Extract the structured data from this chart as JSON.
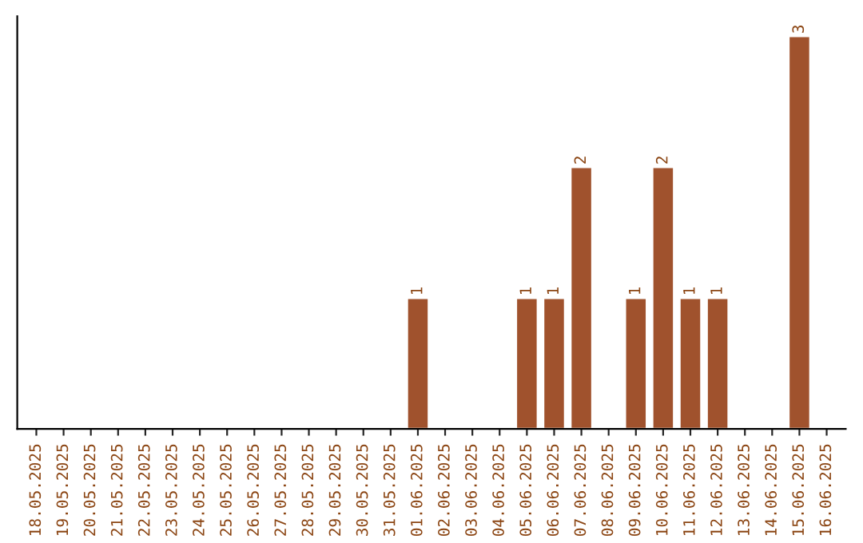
{
  "chart_data": {
    "type": "bar",
    "categories": [
      "18.05.2025",
      "19.05.2025",
      "20.05.2025",
      "21.05.2025",
      "22.05.2025",
      "23.05.2025",
      "24.05.2025",
      "25.05.2025",
      "26.05.2025",
      "27.05.2025",
      "28.05.2025",
      "29.05.2025",
      "30.05.2025",
      "31.05.2025",
      "01.06.2025",
      "02.06.2025",
      "03.06.2025",
      "04.06.2025",
      "05.06.2025",
      "06.06.2025",
      "07.06.2025",
      "08.06.2025",
      "09.06.2025",
      "10.06.2025",
      "11.06.2025",
      "12.06.2025",
      "13.06.2025",
      "14.06.2025",
      "15.06.2025",
      "16.06.2025"
    ],
    "values": [
      null,
      null,
      null,
      null,
      null,
      null,
      null,
      null,
      null,
      null,
      null,
      null,
      null,
      null,
      1,
      null,
      null,
      null,
      1,
      1,
      2,
      null,
      1,
      2,
      1,
      1,
      null,
      null,
      3,
      null
    ],
    "data_labels": true,
    "color": "#a0522d",
    "tick_labels": "x",
    "grid": false,
    "legend": false
  }
}
